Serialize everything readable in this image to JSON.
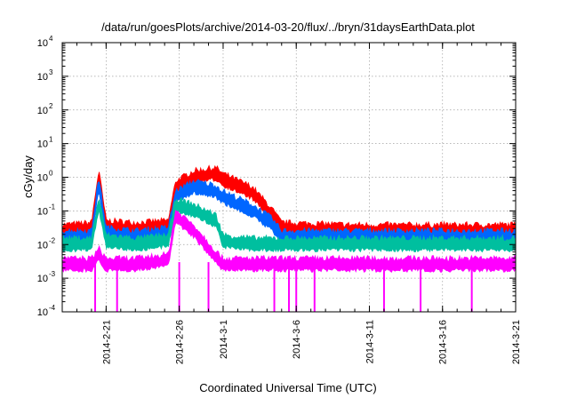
{
  "chart_data": {
    "type": "line",
    "title": "/data/run/goesPlots/archive/2014-03-20/flux/../bryn/31daysEarthData.plot",
    "xlabel": "Coordinated Universal Time (UTC)",
    "ylabel": "cGy/day",
    "y_scale": "log",
    "y_exponent_range": [
      -4,
      4
    ],
    "y_tick_base": "10",
    "y_tick_exponents": [
      "-4",
      "-3",
      "-2",
      "-1",
      "0",
      "1",
      "2",
      "3",
      "4"
    ],
    "x_range": [
      "2014-02-18",
      "2014-03-21"
    ],
    "x_ticks": [
      "2014-2-21",
      "2014-2-26",
      "2014-3-1",
      "2014-3-6",
      "2014-3-11",
      "2014-3-16",
      "2014-3-21"
    ],
    "grid": true,
    "series_colors": [
      "#ff0000",
      "#0066ff",
      "#00bf9f",
      "#ff00ff"
    ],
    "series": [
      {
        "color": "#ff0000",
        "x": [
          "2014-02-18",
          "2014-02-20",
          "2014-02-20T12:00",
          "2014-02-21",
          "2014-02-23",
          "2014-02-25T06:00",
          "2014-02-25T18:00",
          "2014-02-27",
          "2014-02-28T12:00",
          "2014-03-01",
          "2014-03-03",
          "2014-03-04T06:00",
          "2014-03-05",
          "2014-03-10",
          "2014-03-15",
          "2014-03-21"
        ],
        "values": [
          0.03,
          0.035,
          1.3,
          0.04,
          0.035,
          0.04,
          0.6,
          1.2,
          1.5,
          1.0,
          0.4,
          0.1,
          0.035,
          0.03,
          0.03,
          0.03
        ]
      },
      {
        "color": "#0066ff",
        "x": [
          "2014-02-18",
          "2014-02-20",
          "2014-02-20T12:00",
          "2014-02-21",
          "2014-02-23",
          "2014-02-25T06:00",
          "2014-02-25T18:00",
          "2014-02-27",
          "2014-02-28T12:00",
          "2014-03-01",
          "2014-03-03",
          "2014-03-04T06:00",
          "2014-03-05",
          "2014-03-10",
          "2014-03-15",
          "2014-03-21"
        ],
        "values": [
          0.02,
          0.02,
          0.8,
          0.025,
          0.02,
          0.025,
          0.3,
          0.6,
          0.45,
          0.3,
          0.12,
          0.05,
          0.02,
          0.02,
          0.02,
          0.02
        ]
      },
      {
        "color": "#00bf9f",
        "x": [
          "2014-02-18",
          "2014-02-20",
          "2014-02-20T12:00",
          "2014-02-21",
          "2014-02-23",
          "2014-02-25T06:00",
          "2014-02-25T18:00",
          "2014-02-27",
          "2014-02-28T12:00",
          "2014-03-01",
          "2014-03-03",
          "2014-03-04T06:00",
          "2014-03-05",
          "2014-03-10",
          "2014-03-15",
          "2014-03-21"
        ],
        "values": [
          0.012,
          0.012,
          0.2,
          0.015,
          0.012,
          0.015,
          0.18,
          0.12,
          0.06,
          0.015,
          0.012,
          0.012,
          0.012,
          0.012,
          0.012,
          0.012
        ]
      },
      {
        "color": "#ff00ff",
        "x": [
          "2014-02-18",
          "2014-02-20",
          "2014-02-20T12:00",
          "2014-02-21",
          "2014-02-23",
          "2014-02-25T06:00",
          "2014-02-25T18:00",
          "2014-02-27",
          "2014-02-28T12:00",
          "2014-03-01",
          "2014-03-03",
          "2014-03-04T06:00",
          "2014-03-05",
          "2014-03-10",
          "2014-03-15",
          "2014-03-21"
        ],
        "values": [
          0.003,
          0.003,
          0.006,
          0.003,
          0.003,
          0.004,
          0.08,
          0.03,
          0.005,
          0.003,
          0.003,
          0.003,
          0.003,
          0.003,
          0.003,
          0.003
        ]
      }
    ],
    "dropouts": [
      "2014-02-20T06:00",
      "2014-02-21T18:00",
      "2014-02-26",
      "2014-02-28",
      "2014-03-04T12:00",
      "2014-03-05T12:00",
      "2014-03-06",
      "2014-03-07T06:00",
      "2014-03-12",
      "2014-03-14T12:00",
      "2014-03-18"
    ]
  }
}
